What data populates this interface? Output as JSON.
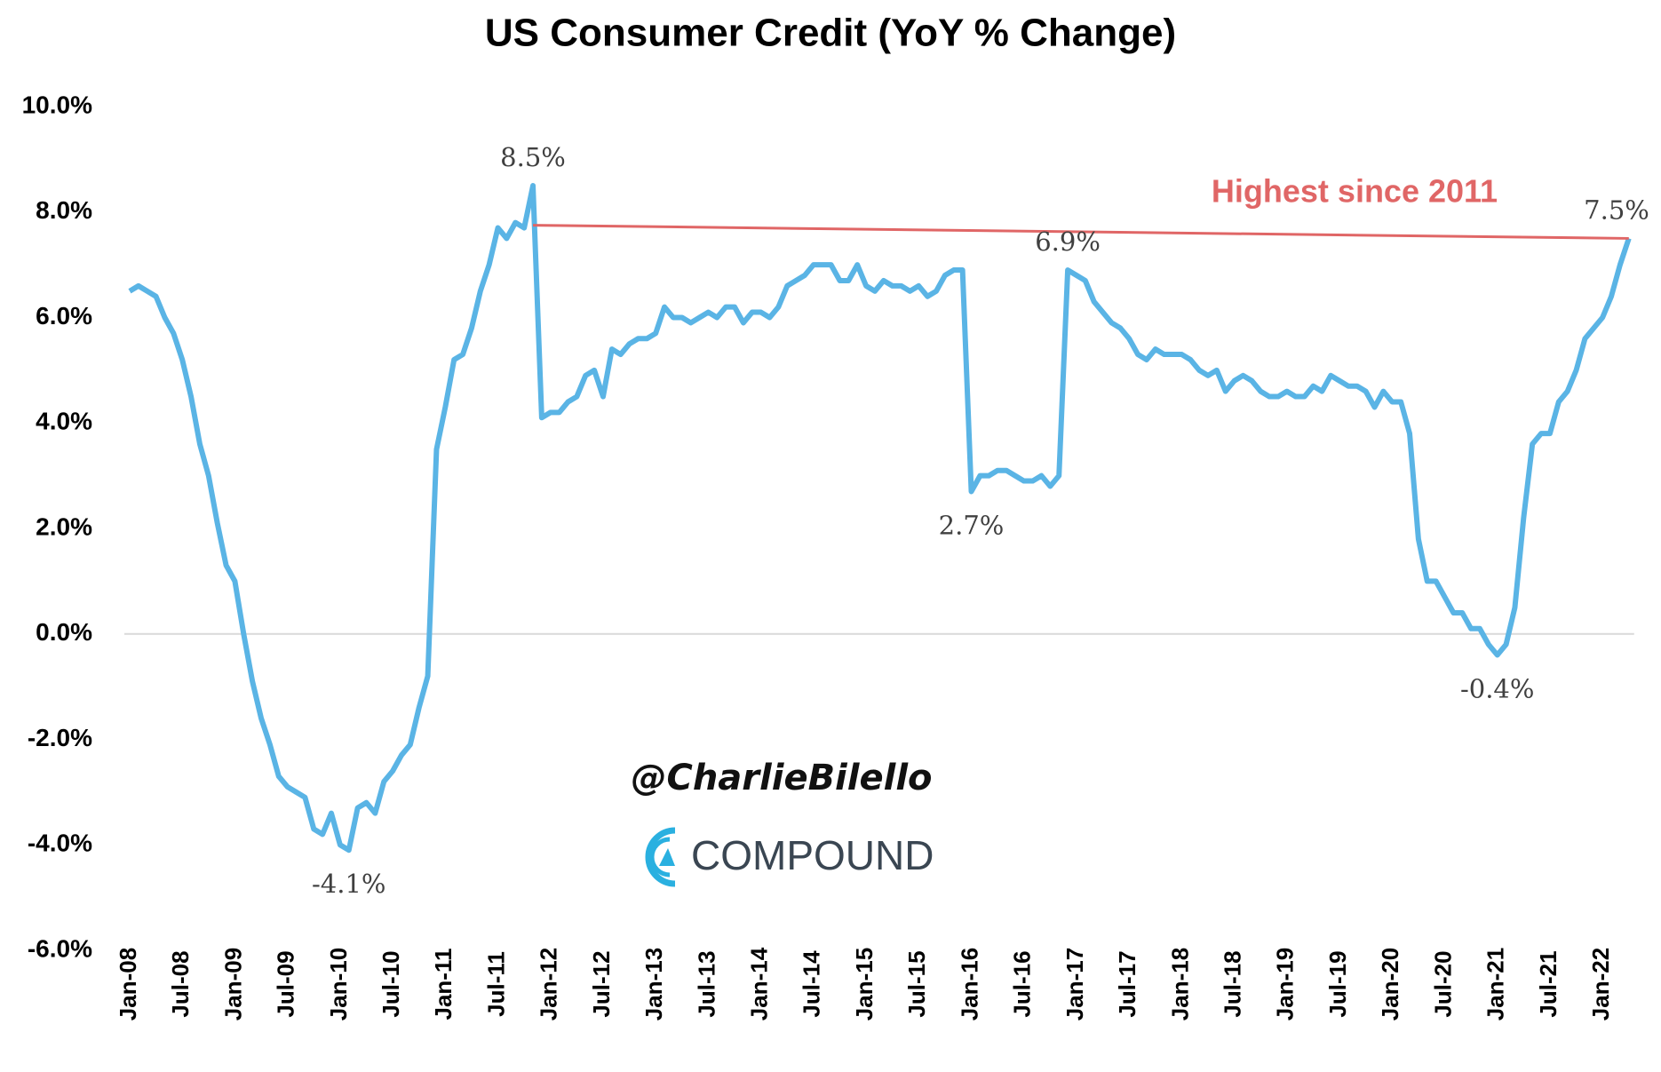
{
  "chart_data": {
    "type": "line",
    "title": "US Consumer Credit (YoY % Change)",
    "categories": [
      "Jan-08",
      null,
      null,
      null,
      null,
      null,
      "Jul-08",
      null,
      null,
      null,
      null,
      null,
      "Jan-09",
      null,
      null,
      null,
      null,
      null,
      "Jul-09",
      null,
      null,
      null,
      null,
      null,
      "Jan-10",
      null,
      null,
      null,
      null,
      null,
      "Jul-10",
      null,
      null,
      null,
      null,
      null,
      "Jan-11",
      null,
      null,
      null,
      null,
      null,
      "Jul-11",
      null,
      null,
      null,
      null,
      null,
      "Jan-12",
      null,
      null,
      null,
      null,
      null,
      "Jul-12",
      null,
      null,
      null,
      null,
      null,
      "Jan-13",
      null,
      null,
      null,
      null,
      null,
      "Jul-13",
      null,
      null,
      null,
      null,
      null,
      "Jan-14",
      null,
      null,
      null,
      null,
      null,
      "Jul-14",
      null,
      null,
      null,
      null,
      null,
      "Jan-15",
      null,
      null,
      null,
      null,
      null,
      "Jul-15",
      null,
      null,
      null,
      null,
      null,
      "Jan-16",
      null,
      null,
      null,
      null,
      null,
      "Jul-16",
      null,
      null,
      null,
      null,
      null,
      "Jan-17",
      null,
      null,
      null,
      null,
      null,
      "Jul-17",
      null,
      null,
      null,
      null,
      null,
      "Jan-18",
      null,
      null,
      null,
      null,
      null,
      "Jul-18",
      null,
      null,
      null,
      null,
      null,
      "Jan-19",
      null,
      null,
      null,
      null,
      null,
      "Jul-19",
      null,
      null,
      null,
      null,
      null,
      "Jan-20",
      null,
      null,
      null,
      null,
      null,
      "Jul-20",
      null,
      null,
      null,
      null,
      null,
      "Jan-21",
      null,
      null,
      null,
      null,
      null,
      "Jul-21",
      null,
      null,
      null,
      null,
      null,
      "Jan-22",
      null,
      null,
      null
    ],
    "values": [
      6.5,
      6.6,
      6.5,
      6.4,
      6.0,
      5.7,
      5.2,
      4.5,
      3.6,
      3.0,
      2.1,
      1.3,
      1.0,
      0.0,
      -0.9,
      -1.6,
      -2.1,
      -2.7,
      -2.9,
      -3.0,
      -3.1,
      -3.7,
      -3.8,
      -3.4,
      -4.0,
      -4.1,
      -3.3,
      -3.2,
      -3.4,
      -2.8,
      -2.6,
      -2.3,
      -2.1,
      -1.4,
      -0.8,
      3.5,
      4.3,
      5.2,
      5.3,
      5.8,
      6.5,
      7.0,
      7.7,
      7.5,
      7.8,
      7.7,
      8.5,
      4.1,
      4.2,
      4.2,
      4.4,
      4.5,
      4.9,
      5.0,
      4.5,
      5.4,
      5.3,
      5.5,
      5.6,
      5.6,
      5.7,
      6.2,
      6.0,
      6.0,
      5.9,
      6.0,
      6.1,
      6.0,
      6.2,
      6.2,
      5.9,
      6.1,
      6.1,
      6.0,
      6.2,
      6.6,
      6.7,
      6.8,
      7.0,
      7.0,
      7.0,
      6.7,
      6.7,
      7.0,
      6.6,
      6.5,
      6.7,
      6.6,
      6.6,
      6.5,
      6.6,
      6.4,
      6.5,
      6.8,
      6.9,
      6.9,
      2.7,
      3.0,
      3.0,
      3.1,
      3.1,
      3.0,
      2.9,
      2.9,
      3.0,
      2.8,
      3.0,
      6.9,
      6.8,
      6.7,
      6.3,
      6.1,
      5.9,
      5.8,
      5.6,
      5.3,
      5.2,
      5.4,
      5.3,
      5.3,
      5.3,
      5.2,
      5.0,
      4.9,
      5.0,
      4.6,
      4.8,
      4.9,
      4.8,
      4.6,
      4.5,
      4.5,
      4.6,
      4.5,
      4.5,
      4.7,
      4.6,
      4.9,
      4.8,
      4.7,
      4.7,
      4.6,
      4.3,
      4.6,
      4.4,
      4.4,
      3.8,
      1.8,
      1.0,
      1.0,
      0.7,
      0.4,
      0.4,
      0.1,
      0.1,
      -0.2,
      -0.4,
      -0.2,
      0.5,
      2.2,
      3.6,
      3.8,
      3.8,
      4.4,
      4.6,
      5.0,
      5.6,
      5.8,
      6.0,
      6.4,
      7.0,
      7.5
    ],
    "color": "#5ab4e5",
    "ylim": [
      -6,
      10
    ],
    "yticks": [
      {
        "value": -6,
        "label": "-6.0%"
      },
      {
        "value": -4,
        "label": "-4.0%"
      },
      {
        "value": -2,
        "label": "-2.0%"
      },
      {
        "value": 0,
        "label": "0.0%"
      },
      {
        "value": 2,
        "label": "2.0%"
      },
      {
        "value": 4,
        "label": "4.0%"
      },
      {
        "value": 6,
        "label": "6.0%"
      },
      {
        "value": 8,
        "label": "8.0%"
      },
      {
        "value": 10,
        "label": "10.0%"
      }
    ],
    "grid": false,
    "zero_line": true,
    "point_labels": [
      {
        "index": 46,
        "label": "8.5%"
      },
      {
        "index": 25,
        "label": "-4.1%"
      },
      {
        "index": 96,
        "label": "2.7%"
      },
      {
        "index": 107,
        "label": "6.9%"
      },
      {
        "index": 156,
        "label": "-0.4%"
      },
      {
        "index": 171,
        "label": "7.5%"
      }
    ],
    "reference_line": {
      "label": "Highest since 2011",
      "color": "#e06666",
      "indices": [
        46,
        171
      ],
      "values": [
        7.75,
        7.5
      ]
    },
    "watermark": {
      "handle": "@CharlieBilello",
      "brand": "COMPOUND"
    }
  }
}
